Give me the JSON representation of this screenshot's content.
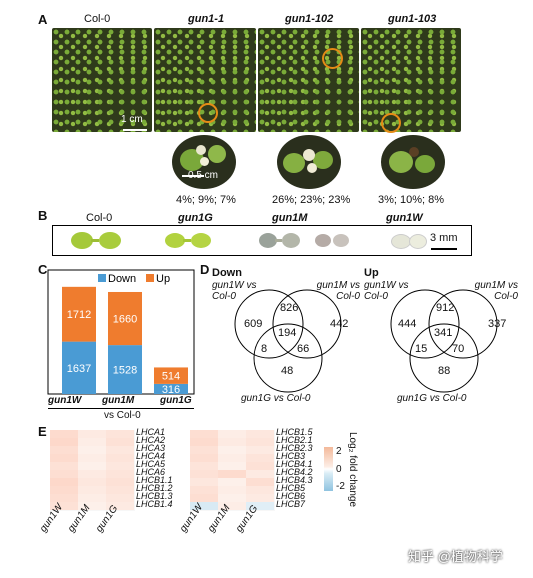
{
  "panel_letters": {
    "a": "A",
    "b": "B",
    "c": "C",
    "d": "D",
    "e": "E"
  },
  "panelA": {
    "genotypes": [
      "Col-0",
      "gun1-1",
      "gun1-102",
      "gun1-103"
    ],
    "scale_big": "1 cm",
    "scale_small": "0.5 cm",
    "percentages": [
      "4%; 9%; 7%",
      "26%; 23%; 23%",
      "3%; 10%; 8%"
    ]
  },
  "panelB": {
    "genotypes": [
      "Col-0",
      "gun1G",
      "gun1M",
      "gun1W"
    ],
    "scale": "3 mm"
  },
  "chart_data": {
    "type": "bar",
    "categories": [
      "gun1W",
      "gun1M",
      "gun1G"
    ],
    "series": [
      {
        "name": "Down",
        "values": [
          1637,
          1528,
          316
        ],
        "color": "#4a9bd4"
      },
      {
        "name": "Up",
        "values": [
          1712,
          1660,
          514
        ],
        "color": "#ef7c2e"
      }
    ],
    "xlabel": "vs Col-0",
    "legend": "top",
    "ylim": [
      0,
      3500
    ]
  },
  "panelD": {
    "down": {
      "title": "Down",
      "labels": [
        "gun1W vs Col-0",
        "gun1M vs Col-0",
        "gun1G vs Col-0"
      ],
      "values": {
        "a_only": "609",
        "b_only": "442",
        "c_only": "48",
        "ab": "826",
        "ac": "8",
        "bc": "66",
        "abc": "194"
      }
    },
    "up": {
      "title": "Up",
      "labels": [
        "gun1W vs Col-0",
        "gun1M vs Col-0",
        "gun1G vs Col-0"
      ],
      "values": {
        "a_only": "444",
        "b_only": "337",
        "c_only": "88",
        "ab": "912",
        "ac": "15",
        "bc": "70",
        "abc": "341"
      }
    }
  },
  "panelE": {
    "columns": [
      "gun1W",
      "gun1M",
      "gun1G"
    ],
    "left_genes": [
      "LHCA1",
      "LHCA2",
      "LHCA3",
      "LHCA4",
      "LHCA5",
      "LHCA6",
      "LHCB1.1",
      "LHCB1.2",
      "LHCB1.3",
      "LHCB1.4"
    ],
    "right_genes": [
      "LHCB1.5",
      "LHCB2.1",
      "LHCB2.3",
      "LHCB3",
      "LHCB4.1",
      "LHCB4.2",
      "LHCB4.3",
      "LHCB5",
      "LHCB6",
      "LHCB7"
    ],
    "left_values": [
      [
        0.8,
        0.3,
        0.5
      ],
      [
        0.9,
        0.2,
        0.6
      ],
      [
        0.7,
        0.1,
        0.4
      ],
      [
        0.8,
        0.2,
        0.5
      ],
      [
        0.6,
        0.1,
        0.4
      ],
      [
        0.7,
        0.3,
        0.5
      ],
      [
        0.9,
        0.4,
        0.6
      ],
      [
        0.8,
        0.3,
        0.5
      ],
      [
        0.7,
        0.2,
        0.4
      ],
      [
        0.6,
        0.1,
        0.3
      ]
    ],
    "right_values": [
      [
        0.7,
        0.2,
        0.4
      ],
      [
        0.8,
        0.3,
        0.5
      ],
      [
        0.6,
        0.1,
        0.3
      ],
      [
        0.7,
        0.2,
        0.5
      ],
      [
        0.5,
        0.1,
        0.6
      ],
      [
        0.6,
        0.8,
        0.3
      ],
      [
        0.4,
        0.1,
        0.7
      ],
      [
        0.6,
        0.2,
        0.4
      ],
      [
        0.7,
        0.1,
        0.3
      ],
      [
        -0.6,
        0.2,
        -0.4
      ]
    ],
    "legend_ticks": [
      "2",
      "0",
      "-2"
    ],
    "legend_title": "Log₂ fold change"
  },
  "watermark": "知乎 @植物科学"
}
